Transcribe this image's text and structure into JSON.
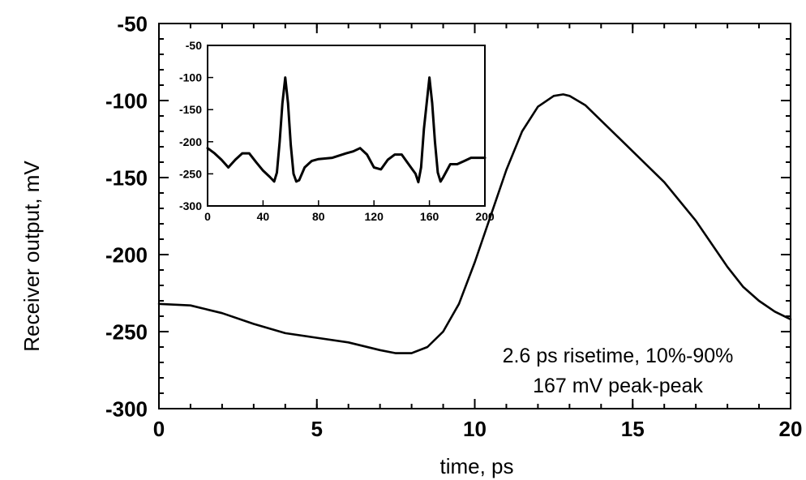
{
  "chart_data": [
    {
      "type": "line",
      "xlabel": "time, ps",
      "ylabel": "Receiver output, mV",
      "xlim": [
        0,
        20
      ],
      "ylim": [
        -300,
        -50
      ],
      "xticks": [
        "0",
        "5",
        "10",
        "15",
        "20"
      ],
      "yticks": [
        "-50",
        "-100",
        "-150",
        "-200",
        "-250",
        "-300"
      ],
      "grid": false,
      "annotation_lines": [
        "2.6 ps risetime, 10%-90%",
        "167 mV peak-peak"
      ],
      "series": [
        {
          "x": [
            0,
            1,
            2,
            3,
            4,
            5,
            6,
            7,
            7.5,
            8,
            8.5,
            9,
            9.5,
            10,
            10.5,
            11,
            11.5,
            12,
            12.5,
            12.8,
            13,
            13.5,
            14,
            15,
            16,
            17,
            18,
            18.5,
            19,
            19.5,
            20
          ],
          "y": [
            -232,
            -233,
            -238,
            -245,
            -251,
            -254,
            -257,
            -262,
            -264,
            -264,
            -260,
            -250,
            -232,
            -205,
            -175,
            -145,
            -120,
            -104,
            -97,
            -96,
            -97,
            -103,
            -113,
            -133,
            -153,
            -178,
            -208,
            -221,
            -230,
            -237,
            -242
          ]
        }
      ]
    },
    {
      "type": "line",
      "xlim": [
        0,
        200
      ],
      "ylim": [
        -300,
        -50
      ],
      "xticks": [
        "0",
        "40",
        "80",
        "120",
        "160",
        "200"
      ],
      "yticks": [
        "-50",
        "-100",
        "-150",
        "-200",
        "-250",
        "-300"
      ],
      "series": [
        {
          "x": [
            0,
            5,
            10,
            15,
            20,
            25,
            30,
            35,
            40,
            45,
            48,
            50,
            52,
            54,
            56,
            58,
            60,
            62,
            64,
            66,
            70,
            75,
            80,
            90,
            100,
            105,
            110,
            115,
            120,
            125,
            130,
            135,
            140,
            145,
            150,
            152,
            154,
            156,
            158,
            160,
            162,
            164,
            166,
            168,
            170,
            175,
            180,
            185,
            190,
            195,
            200
          ],
          "y": [
            -210,
            -218,
            -228,
            -240,
            -228,
            -218,
            -218,
            -232,
            -245,
            -255,
            -262,
            -248,
            -200,
            -140,
            -100,
            -140,
            -205,
            -250,
            -262,
            -260,
            -240,
            -230,
            -227,
            -225,
            -218,
            -215,
            -210,
            -220,
            -240,
            -243,
            -228,
            -220,
            -220,
            -235,
            -250,
            -263,
            -240,
            -180,
            -140,
            -100,
            -140,
            -200,
            -248,
            -262,
            -255,
            -235,
            -235,
            -230,
            -225,
            -225,
            -225
          ]
        }
      ]
    }
  ]
}
